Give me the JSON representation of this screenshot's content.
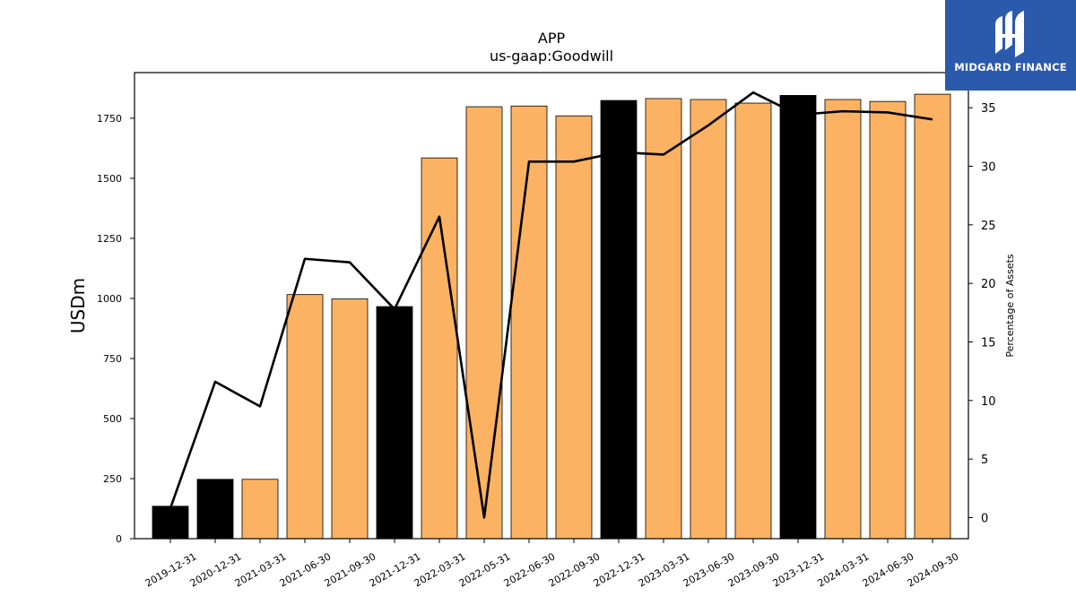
{
  "brand": {
    "name": "MIDGARD FINANCE",
    "background": "#2b5aad"
  },
  "colors": {
    "bar_quarter": "#fbb263",
    "bar_year_end": "#000000",
    "line": "#000000"
  },
  "chart_data": {
    "type": "bar",
    "title": "APP",
    "subtitle": "us-gaap:Goodwill",
    "ylabel": "USDm",
    "ylabel_right": "Percentage of Assets",
    "ylim": [
      0,
      1940
    ],
    "ylim_right": [
      -1.8,
      38.0
    ],
    "yticks": [
      0,
      250,
      500,
      750,
      1000,
      1250,
      1500,
      1750
    ],
    "yticks_right": [
      0,
      5,
      10,
      15,
      20,
      25,
      30,
      35
    ],
    "grid": false,
    "categories": [
      "2019-12-31",
      "2020-12-31",
      "2021-03-31",
      "2021-06-30",
      "2021-09-30",
      "2021-12-31",
      "2022-03-31",
      "2022-05-31",
      "2022-06-30",
      "2022-09-30",
      "2022-12-31",
      "2023-03-31",
      "2023-06-30",
      "2023-09-30",
      "2023-12-31",
      "2024-03-31",
      "2024-06-30",
      "2024-09-30"
    ],
    "series": [
      {
        "type": "bar",
        "axis": "left",
        "values": [
          135,
          247,
          247,
          1016,
          998,
          966,
          1585,
          1798,
          1801,
          1760,
          1824,
          1832,
          1828,
          1813,
          1845,
          1828,
          1820,
          1850
        ],
        "year_end": [
          true,
          true,
          false,
          false,
          false,
          true,
          false,
          false,
          false,
          false,
          true,
          false,
          false,
          false,
          true,
          false,
          false,
          false
        ]
      },
      {
        "type": "line",
        "axis": "right",
        "values": [
          0.8,
          11.6,
          9.5,
          22.1,
          21.8,
          17.8,
          25.7,
          0.0,
          30.4,
          30.4,
          31.2,
          31.0,
          33.5,
          36.3,
          34.4,
          34.7,
          34.6,
          34.0
        ]
      }
    ]
  }
}
